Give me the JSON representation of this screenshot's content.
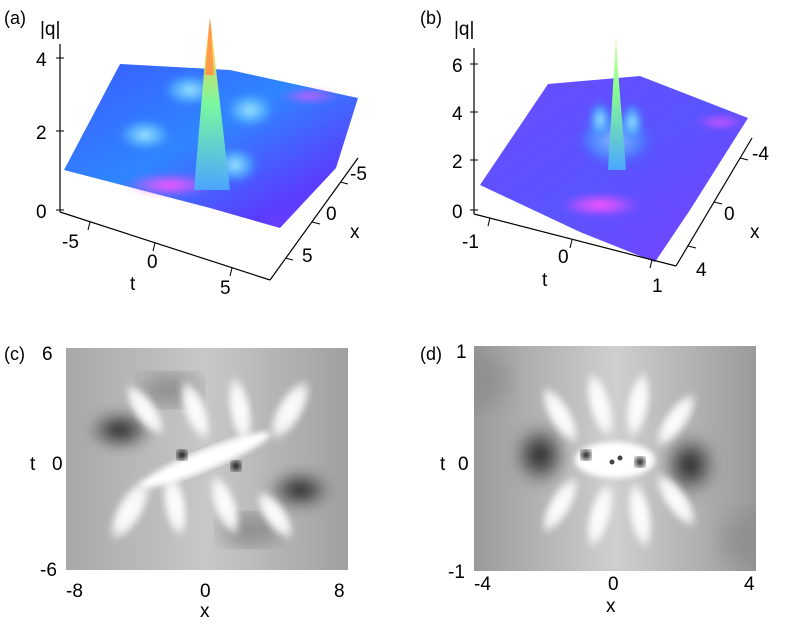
{
  "panels": [
    {
      "id": "a",
      "label": "(a)",
      "zlabel": "|q|",
      "z_ticks": [
        "0",
        "2",
        "4"
      ],
      "t_ticks": [
        "-5",
        "0",
        "5"
      ],
      "x_ticks": [
        "-5",
        "0",
        "5"
      ],
      "t_label": "t",
      "x_label": "x"
    },
    {
      "id": "b",
      "label": "(b)",
      "zlabel": "|q|",
      "z_ticks": [
        "0",
        "2",
        "4",
        "6"
      ],
      "t_ticks": [
        "-1",
        "0",
        "1"
      ],
      "x_ticks": [
        "-4",
        "0",
        "4"
      ],
      "t_label": "t",
      "x_label": "x"
    },
    {
      "id": "c",
      "label": "(c)",
      "t_ticks": [
        "6",
        "0",
        "-6"
      ],
      "x_ticks": [
        "-8",
        "0",
        "8"
      ],
      "t_label": "t",
      "x_label": "x"
    },
    {
      "id": "d",
      "label": "(d)",
      "t_ticks": [
        "1",
        "0",
        "-1"
      ],
      "x_ticks": [
        "-4",
        "0",
        "4"
      ],
      "t_label": "t",
      "x_label": "x"
    }
  ]
}
